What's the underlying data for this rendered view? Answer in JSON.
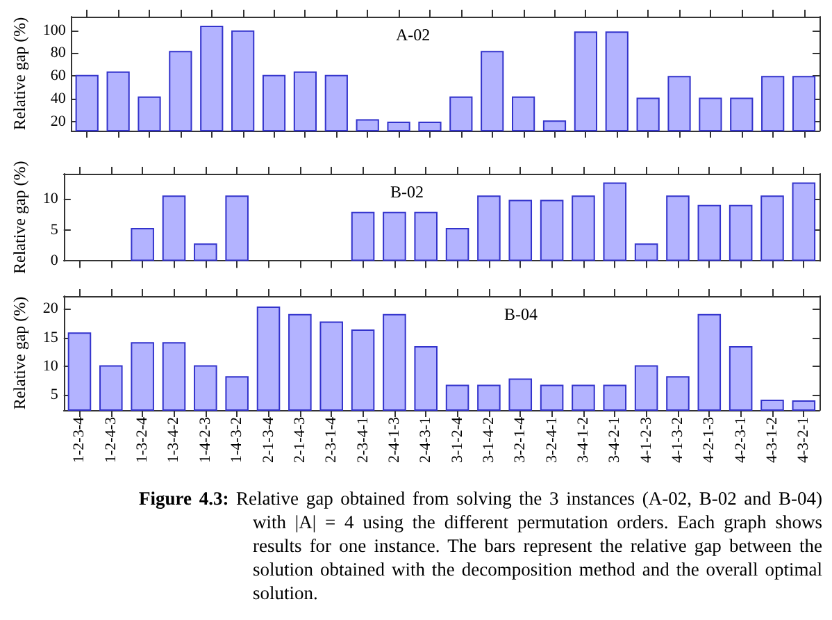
{
  "chart_data": [
    {
      "type": "bar",
      "title": "A-02",
      "ylabel": "Relative gap (%)",
      "categories": [
        null,
        null,
        null,
        null,
        null,
        null,
        null,
        null,
        null,
        null,
        null,
        null,
        null,
        null,
        null,
        null,
        null,
        null,
        null,
        null,
        null,
        null,
        null,
        null
      ],
      "values": [
        61,
        64,
        42,
        82,
        104,
        100,
        61,
        64,
        61,
        22,
        20,
        20,
        42,
        82,
        42,
        21,
        99,
        99,
        41,
        60,
        41,
        41,
        60,
        60
      ],
      "color": "#b3b3ff",
      "ylim": [
        12,
        112
      ],
      "yticks": [
        20,
        40,
        60,
        80,
        100
      ],
      "grid": false
    },
    {
      "type": "bar",
      "title": "B-02",
      "ylabel": "Relative gap (%)",
      "categories": [
        null,
        null,
        null,
        null,
        null,
        null,
        null,
        null,
        null,
        null,
        null,
        null,
        null,
        null,
        null,
        null,
        null,
        null,
        null,
        null,
        null,
        null,
        null,
        null
      ],
      "values": [
        0,
        0,
        5.3,
        10.5,
        2.8,
        10.5,
        0,
        0,
        0,
        7.9,
        7.9,
        7.9,
        5.3,
        10.5,
        9.8,
        9.8,
        10.5,
        12.6,
        2.8,
        10.5,
        9,
        9,
        10.5,
        12.6
      ],
      "color": "#b3b3ff",
      "ylim": [
        0,
        14
      ],
      "yticks": [
        0,
        5,
        10
      ],
      "grid": false
    },
    {
      "type": "bar",
      "title": "B-04",
      "ylabel": "Relative gap (%)",
      "categories": [
        "1-2-3-4",
        "1-2-4-3",
        "1-3-2-4",
        "1-3-4-2",
        "1-4-2-3",
        "1-4-3-2",
        "2-1-3-4",
        "2-1-4-3",
        "2-3-1-4",
        "2-3-4-1",
        "2-4-1-3",
        "2-4-3-1",
        "3-1-2-4",
        "3-1-4-2",
        "3-2-1-4",
        "3-2-4-1",
        "3-4-1-2",
        "3-4-2-1",
        "4-1-2-3",
        "4-1-3-2",
        "4-2-1-3",
        "4-2-3-1",
        "4-3-1-2",
        "4-3-2-1"
      ],
      "values": [
        15.9,
        10.2,
        14.2,
        14.2,
        10.2,
        8.3,
        20.4,
        19.1,
        17.8,
        16.4,
        19.1,
        13.5,
        6.8,
        6.8,
        7.9,
        6.8,
        6.8,
        6.8,
        10.2,
        8.3,
        19.1,
        13.5,
        4.2,
        4.1
      ],
      "color": "#b3b3ff",
      "ylim": [
        2.4,
        22.2
      ],
      "yticks": [
        5,
        10,
        15,
        20
      ],
      "grid": false,
      "annotations": [
        "Figure 4.3: Relative gap obtained from solving the 3 instances (A-02, B-02 and B-04) with |A| = 4 using the different permutation orders. Each graph shows results for one instance. The bars represent the relative gap between the solution obtained with the decomposition method and the overall optimal solution."
      ]
    }
  ]
}
